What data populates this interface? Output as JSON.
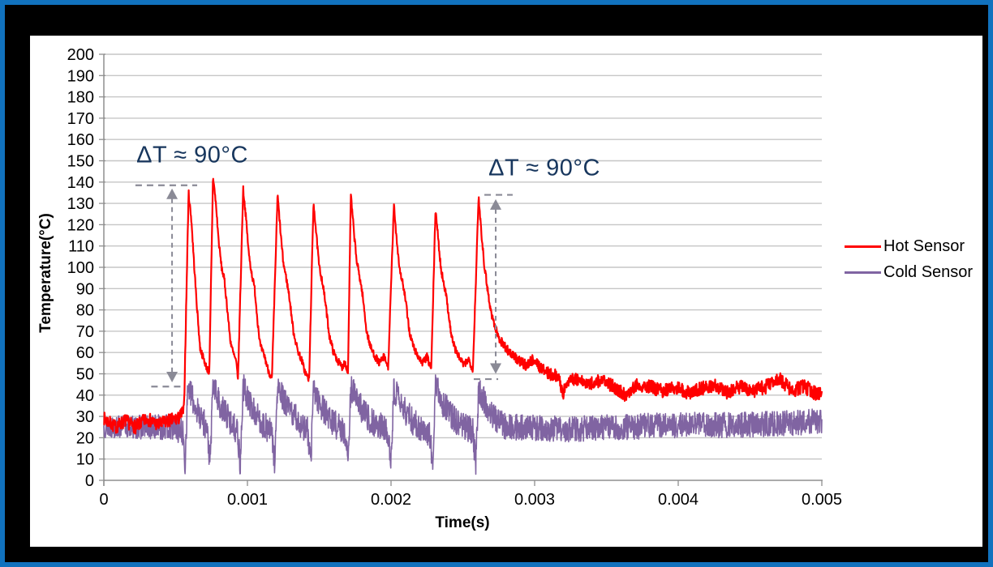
{
  "colors": {
    "frame_blue": "#1172BE",
    "slide_black": "#000000",
    "panel_white": "#FFFFFF",
    "gridline": "#C6C6C6",
    "axis": "#8F8F8F",
    "annotation_navy": "#17365D",
    "arrow_gray": "#8A8A96"
  },
  "chart_data": {
    "type": "line",
    "title": "",
    "xlabel": "Time(s)",
    "ylabel": "Temperature(°C)",
    "xlim": [
      0,
      0.005
    ],
    "ylim": [
      0,
      200
    ],
    "grid": "horizontal",
    "legend_position": "right",
    "x_ticks": [
      0,
      0.001,
      0.002,
      0.003,
      0.004,
      0.005
    ],
    "x_tick_labels": [
      "0",
      "0.001",
      "0.002",
      "0.003",
      "0.004",
      "0.005"
    ],
    "y_tick_step": 10,
    "y_tick_labels": [
      "0",
      "10",
      "20",
      "30",
      "40",
      "50",
      "60",
      "70",
      "80",
      "90",
      "100",
      "110",
      "120",
      "130",
      "140",
      "150",
      "160",
      "170",
      "180",
      "190",
      "200"
    ],
    "annotations": [
      {
        "text": "ΔT ≈ 90°C",
        "t": 0.000616,
        "T": 152.5,
        "color": "#17365D"
      },
      {
        "text": "ΔT ≈ 90°C",
        "t": 0.003068,
        "T": 146.5,
        "color": "#17365D"
      }
    ],
    "delta_markers": [
      {
        "t": 0.000475,
        "T_top": 137,
        "T_bottom": 46,
        "cap_top": {
          "T": 138.5,
          "t1": 0.00022,
          "t2": 0.00065
        },
        "cap_bottom": {
          "T": 44,
          "t1": 0.00033,
          "t2": 0.000565
        }
      },
      {
        "t": 0.002729,
        "T_top": 132,
        "T_bottom": 50,
        "cap_top": {
          "T": 134,
          "t1": 0.00265,
          "t2": 0.002847
        },
        "cap_bottom": {
          "T": 47.5,
          "t1": 0.002576,
          "t2": 0.002746
        }
      }
    ],
    "series": [
      {
        "name": "Hot Sensor",
        "color": "#FF0000",
        "peak_times": [
          0.00059,
          0.00076,
          0.00097,
          0.00121,
          0.00146,
          0.00172,
          0.00202,
          0.00231,
          0.00261
        ],
        "peak_values": [
          135,
          143,
          137,
          134,
          131,
          134,
          129,
          128,
          133
        ],
        "keypoints": [
          [
            0,
            29
          ],
          [
            8e-05,
            25
          ],
          [
            0.00015,
            28
          ],
          [
            0.00022,
            25
          ],
          [
            0.0003,
            29
          ],
          [
            0.00038,
            26
          ],
          [
            0.00045,
            28
          ],
          [
            0.00052,
            29
          ],
          [
            0.000558,
            33
          ],
          [
            0.00059,
            135
          ],
          [
            0.00061,
            122
          ],
          [
            0.00063,
            100
          ],
          [
            0.00065,
            80
          ],
          [
            0.00067,
            62
          ],
          [
            0.00069,
            58
          ],
          [
            0.00071,
            54
          ],
          [
            0.000735,
            50
          ],
          [
            0.00076,
            143
          ],
          [
            0.00078,
            130
          ],
          [
            0.0008,
            112
          ],
          [
            0.00082,
            100
          ],
          [
            0.00084,
            94
          ],
          [
            0.00086,
            80
          ],
          [
            0.00088,
            66
          ],
          [
            0.0009,
            60
          ],
          [
            0.00092,
            56
          ],
          [
            0.000935,
            48
          ],
          [
            0.00097,
            137
          ],
          [
            0.00099,
            123
          ],
          [
            0.00101,
            106
          ],
          [
            0.00103,
            97
          ],
          [
            0.00105,
            90
          ],
          [
            0.00107,
            75
          ],
          [
            0.00109,
            63
          ],
          [
            0.00112,
            58
          ],
          [
            0.00114,
            53
          ],
          [
            0.00117,
            47
          ],
          [
            0.00121,
            134
          ],
          [
            0.00123,
            117
          ],
          [
            0.00125,
            102
          ],
          [
            0.00127,
            95
          ],
          [
            0.00129,
            87
          ],
          [
            0.00132,
            70
          ],
          [
            0.00135,
            61
          ],
          [
            0.00138,
            56
          ],
          [
            0.0014,
            51
          ],
          [
            0.00143,
            47
          ],
          [
            0.00146,
            131
          ],
          [
            0.00148,
            115
          ],
          [
            0.0015,
            100
          ],
          [
            0.00152,
            94
          ],
          [
            0.00154,
            85
          ],
          [
            0.00157,
            68
          ],
          [
            0.0016,
            60
          ],
          [
            0.00163,
            56
          ],
          [
            0.00166,
            53
          ],
          [
            0.00168,
            56
          ],
          [
            0.0017,
            50
          ],
          [
            0.00172,
            134
          ],
          [
            0.00174,
            118
          ],
          [
            0.00176,
            103
          ],
          [
            0.00178,
            96
          ],
          [
            0.0018,
            88
          ],
          [
            0.00183,
            70
          ],
          [
            0.00186,
            62
          ],
          [
            0.00189,
            58
          ],
          [
            0.00192,
            55
          ],
          [
            0.00195,
            58
          ],
          [
            0.00198,
            53
          ],
          [
            0.00202,
            129
          ],
          [
            0.00204,
            113
          ],
          [
            0.00206,
            99
          ],
          [
            0.00208,
            93
          ],
          [
            0.0021,
            85
          ],
          [
            0.00213,
            69
          ],
          [
            0.00216,
            62
          ],
          [
            0.00219,
            58
          ],
          [
            0.00222,
            55
          ],
          [
            0.00225,
            58
          ],
          [
            0.00228,
            52
          ],
          [
            0.00231,
            128
          ],
          [
            0.00233,
            112
          ],
          [
            0.00235,
            98
          ],
          [
            0.00237,
            92
          ],
          [
            0.00239,
            84
          ],
          [
            0.00242,
            68
          ],
          [
            0.00245,
            61
          ],
          [
            0.00248,
            57
          ],
          [
            0.00251,
            54
          ],
          [
            0.00254,
            57
          ],
          [
            0.00257,
            52
          ],
          [
            0.00261,
            133
          ],
          [
            0.00263,
            116
          ],
          [
            0.00265,
            101
          ],
          [
            0.00267,
            91
          ],
          [
            0.00269,
            81
          ],
          [
            0.00272,
            73
          ],
          [
            0.00275,
            67
          ],
          [
            0.00279,
            63
          ],
          [
            0.00284,
            59
          ],
          [
            0.00289,
            56
          ],
          [
            0.00294,
            54
          ],
          [
            0.00299,
            57
          ],
          [
            0.00304,
            53
          ],
          [
            0.0031,
            50
          ],
          [
            0.00316,
            49
          ],
          [
            0.0032,
            41
          ],
          [
            0.00324,
            48
          ],
          [
            0.0033,
            47
          ],
          [
            0.00338,
            45
          ],
          [
            0.00346,
            47
          ],
          [
            0.00355,
            44
          ],
          [
            0.00363,
            40
          ],
          [
            0.00371,
            45
          ],
          [
            0.0038,
            44
          ],
          [
            0.00389,
            42
          ],
          [
            0.00398,
            44
          ],
          [
            0.00407,
            41
          ],
          [
            0.00416,
            43
          ],
          [
            0.00425,
            45
          ],
          [
            0.00434,
            41
          ],
          [
            0.00443,
            44
          ],
          [
            0.00452,
            42
          ],
          [
            0.00461,
            44
          ],
          [
            0.0047,
            48
          ],
          [
            0.00479,
            42
          ],
          [
            0.00488,
            44
          ],
          [
            0.00495,
            41
          ],
          [
            0.005,
            41
          ]
        ],
        "noise": [
          [
            0,
            3.2
          ],
          [
            0.00054,
            3.2
          ],
          [
            0.0006,
            1.6
          ],
          [
            0.0026,
            1.8
          ],
          [
            0.0028,
            2.2
          ],
          [
            0.0032,
            3
          ],
          [
            0.005,
            3.4
          ]
        ]
      },
      {
        "name": "Cold Sensor",
        "color": "#8064A2",
        "keypoints": [
          [
            0,
            25
          ],
          [
            0.0005,
            25
          ],
          [
            0.00055,
            22
          ],
          [
            0.000565,
            7
          ],
          [
            0.000585,
            44
          ],
          [
            0.00064,
            34
          ],
          [
            0.0007,
            27
          ],
          [
            0.00072,
            23
          ],
          [
            0.00074,
            8
          ],
          [
            0.00076,
            45
          ],
          [
            0.00081,
            35
          ],
          [
            0.00088,
            28
          ],
          [
            0.00093,
            23
          ],
          [
            0.00095,
            7
          ],
          [
            0.00097,
            44
          ],
          [
            0.00103,
            34
          ],
          [
            0.0011,
            27
          ],
          [
            0.00117,
            22
          ],
          [
            0.00119,
            8
          ],
          [
            0.00121,
            44
          ],
          [
            0.00127,
            35
          ],
          [
            0.00135,
            28
          ],
          [
            0.00142,
            23
          ],
          [
            0.00144,
            7
          ],
          [
            0.00146,
            43
          ],
          [
            0.00152,
            34
          ],
          [
            0.0016,
            27
          ],
          [
            0.00168,
            22
          ],
          [
            0.0017,
            8
          ],
          [
            0.00172,
            44
          ],
          [
            0.00178,
            35
          ],
          [
            0.00186,
            28
          ],
          [
            0.00198,
            23
          ],
          [
            0.002,
            7
          ],
          [
            0.00202,
            43
          ],
          [
            0.00208,
            34
          ],
          [
            0.00216,
            27
          ],
          [
            0.00227,
            22
          ],
          [
            0.00229,
            8
          ],
          [
            0.00231,
            44
          ],
          [
            0.00237,
            35
          ],
          [
            0.00245,
            28
          ],
          [
            0.00257,
            23
          ],
          [
            0.00259,
            7
          ],
          [
            0.00261,
            43
          ],
          [
            0.00267,
            34
          ],
          [
            0.00274,
            28
          ],
          [
            0.0028,
            25
          ],
          [
            0.0029,
            25
          ],
          [
            0.0032,
            24
          ],
          [
            0.0036,
            25
          ],
          [
            0.004,
            26
          ],
          [
            0.0044,
            26
          ],
          [
            0.0048,
            27
          ],
          [
            0.005,
            28
          ]
        ],
        "noise": [
          [
            0,
            5
          ],
          [
            0.00055,
            6.5
          ],
          [
            0.0026,
            6.5
          ],
          [
            0.003,
            6
          ],
          [
            0.005,
            6
          ]
        ]
      }
    ]
  }
}
